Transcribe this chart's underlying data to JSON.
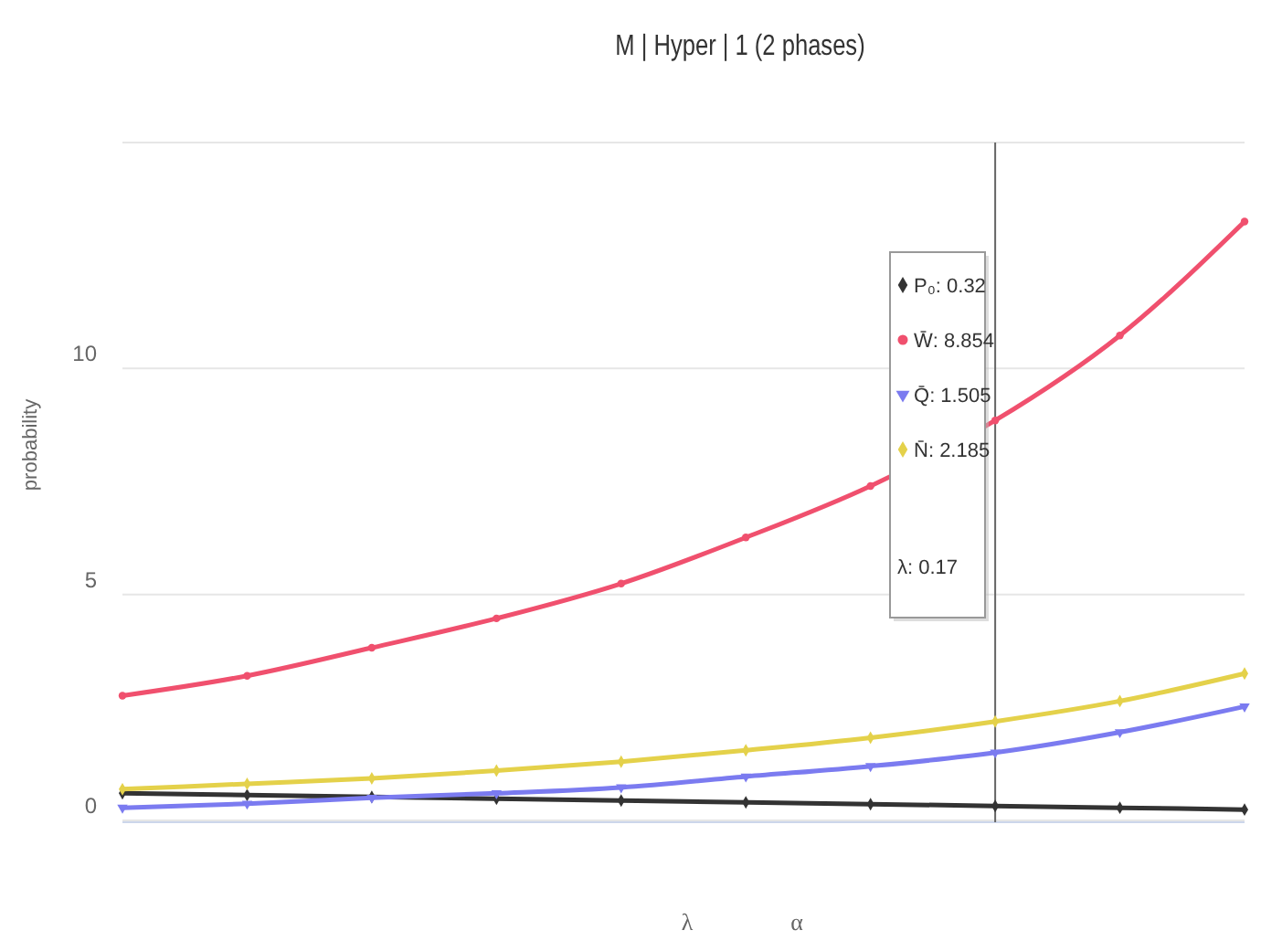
{
  "chart_data": {
    "type": "line",
    "title": "M | Hyper | 1 (2 phases)",
    "xlabel": "λ",
    "ylabel": "probability",
    "annotations": [
      "α",
      ": 0.32",
      ": 8.854",
      ": 1.505",
      ": 2.185",
      "λ: 0.17"
    ],
    "categories": [
      null,
      null,
      null,
      null,
      null,
      null,
      null,
      null,
      null,
      null
    ],
    "series": [
      {
        "name": "P₀",
        "color": "#333333",
        "marker": "diamond",
        "values": [
          0.6,
          0.56,
          0.52,
          0.48,
          0.44,
          0.4,
          0.36,
          0.32,
          0.28,
          0.24
        ]
      },
      {
        "name": "W̄",
        "color": "#f0506e",
        "marker": "circle",
        "values": [
          2.76,
          3.2,
          3.82,
          4.47,
          5.24,
          6.26,
          7.4,
          8.85,
          10.73,
          13.25
        ]
      },
      {
        "name": "Q̄",
        "color": "#7b7bf0",
        "marker": "triangle",
        "values": [
          0.28,
          0.37,
          0.5,
          0.6,
          0.73,
          0.97,
          1.2,
          1.5,
          1.95,
          2.52
        ]
      },
      {
        "name": "N̄",
        "color": "#e4d14a",
        "marker": "diamond",
        "values": [
          0.69,
          0.81,
          0.93,
          1.1,
          1.3,
          1.55,
          1.83,
          2.19,
          2.64,
          3.25
        ]
      }
    ],
    "ylim": [
      0,
      15
    ],
    "yticks": [
      0,
      5,
      10,
      {
        "value": 15,
        "label": null
      }
    ],
    "grid": "y",
    "legend": "top right"
  }
}
